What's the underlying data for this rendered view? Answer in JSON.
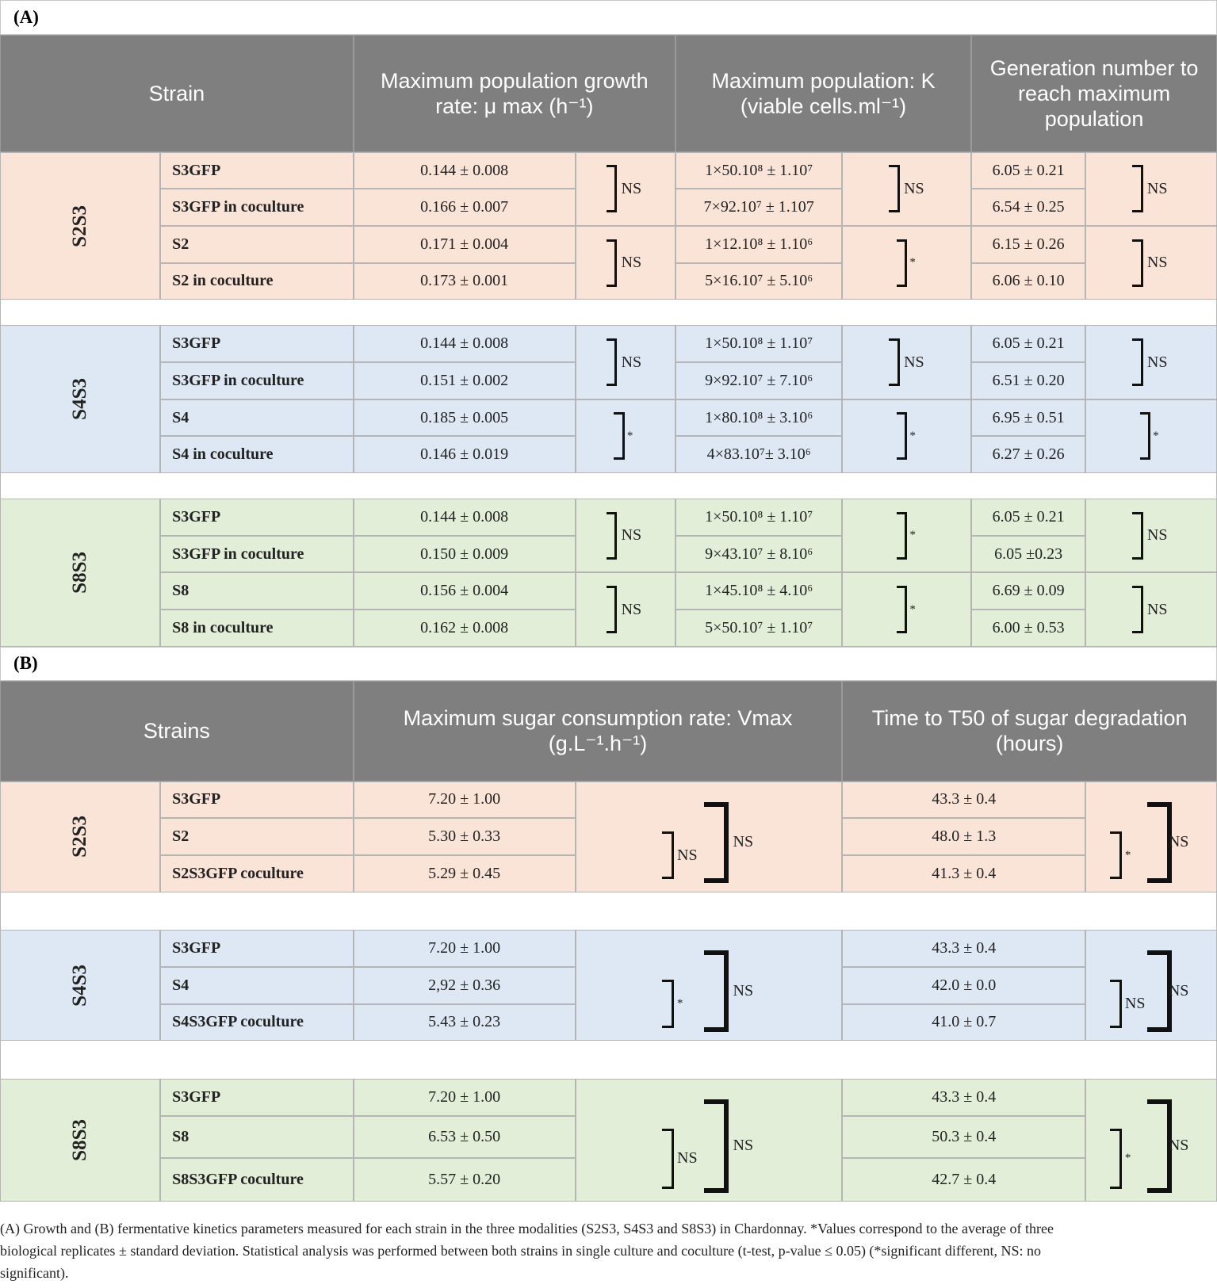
{
  "sections": [
    {
      "label": "(A)",
      "headers": [
        "Strain",
        "Maximum population growth rate: μ max (h⁻¹)",
        "Maximum population: K (viable cells.ml⁻¹)",
        "Generation number to reach maximum population"
      ],
      "groups": [
        {
          "name": "S2S3",
          "rows": [
            {
              "strain": "S3GFP",
              "values": [
                "0.144 ± 0.008",
                "1×50.10⁸ ± 1.10⁷",
                "6.05 ± 0.21"
              ]
            },
            {
              "strain": "S3GFP in coculture",
              "values": [
                "0.166 ± 0.007",
                "7×92.10⁷ ± 1.107",
                "6.54 ± 0.25"
              ]
            },
            {
              "strain": "S2",
              "values": [
                "0.171 ± 0.004",
                "1×12.10⁸ ± 1.10⁶",
                "6.15 ± 0.26"
              ]
            },
            {
              "strain": "S2 in coculture",
              "values": [
                "0.173 ± 0.001",
                "5×16.10⁷ ± 5.10⁶",
                "6.06 ± 0.10"
              ]
            }
          ],
          "comparisons": [
            [
              "NS",
              "NS",
              "NS"
            ],
            [
              "NS",
              "*",
              "NS"
            ]
          ]
        },
        {
          "name": "S4S3",
          "rows": [
            {
              "strain": "S3GFP",
              "values": [
                "0.144 ± 0.008",
                "1×50.10⁸ ± 1.10⁷",
                "6.05 ± 0.21"
              ]
            },
            {
              "strain": "S3GFP in coculture",
              "values": [
                "0.151 ± 0.002",
                "9×92.10⁷ ± 7.10⁶",
                "6.51 ± 0.20"
              ]
            },
            {
              "strain": "S4",
              "values": [
                "0.185 ± 0.005",
                "1×80.10⁸ ± 3.10⁶",
                "6.95 ± 0.51"
              ]
            },
            {
              "strain": "S4 in coculture",
              "values": [
                "0.146 ± 0.019",
                "4×83.10⁷± 3.10⁶",
                "6.27 ± 0.26"
              ]
            }
          ],
          "comparisons": [
            [
              "NS",
              "NS",
              "NS"
            ],
            [
              "*",
              "*",
              "*"
            ]
          ]
        },
        {
          "name": "S8S3",
          "rows": [
            {
              "strain": "S3GFP",
              "values": [
                "0.144 ± 0.008",
                "1×50.10⁸ ± 1.10⁷",
                "6.05 ± 0.21"
              ]
            },
            {
              "strain": "S3GFP in coculture",
              "values": [
                "0.150 ± 0.009",
                "9×43.10⁷ ± 8.10⁶",
                "6.05 ±0.23"
              ]
            },
            {
              "strain": "S8",
              "values": [
                "0.156 ± 0.004",
                "1×45.10⁸ ± 4.10⁶",
                "6.69 ± 0.09"
              ]
            },
            {
              "strain": "S8 in coculture",
              "values": [
                "0.162 ± 0.008",
                "5×50.10⁷ ± 1.10⁷",
                "6.00 ± 0.53"
              ]
            }
          ],
          "comparisons": [
            [
              "NS",
              "*",
              "NS"
            ],
            [
              "NS",
              "*",
              "NS"
            ]
          ]
        }
      ]
    },
    {
      "label": "(B)",
      "headers": [
        "Strains",
        "Maximum sugar consumption rate: Vmax (g.L⁻¹.h⁻¹)",
        "Time to T50 of sugar degradation (hours)"
      ],
      "groups": [
        {
          "name": "S2S3",
          "rows": [
            {
              "strain": "S3GFP",
              "values": [
                "7.20 ± 1.00",
                "43.3 ± 0.4"
              ]
            },
            {
              "strain": "S2",
              "values": [
                "5.30 ± 0.33",
                "48.0 ± 1.3"
              ]
            },
            {
              "strain": "S2S3GFP coculture",
              "values": [
                "5.29 ± 0.45",
                "41.3 ± 0.4"
              ]
            }
          ],
          "comparisons": [
            {
              "pair": "NS",
              "all": "NS"
            },
            {
              "pair": "*",
              "all": "NS"
            }
          ]
        },
        {
          "name": "S4S3",
          "rows": [
            {
              "strain": "S3GFP",
              "values": [
                "7.20 ± 1.00",
                "43.3 ± 0.4"
              ]
            },
            {
              "strain": "S4",
              "values": [
                "2,92 ± 0.36",
                "42.0 ± 0.0"
              ]
            },
            {
              "strain": "S4S3GFP coculture",
              "values": [
                "5.43 ± 0.23",
                "41.0 ± 0.7"
              ]
            }
          ],
          "comparisons": [
            {
              "pair": "*",
              "all": "NS"
            },
            {
              "pair": "NS",
              "all": "NS"
            }
          ]
        },
        {
          "name": "S8S3",
          "rows": [
            {
              "strain": "S3GFP",
              "values": [
                "7.20 ± 1.00",
                "43.3 ± 0.4"
              ]
            },
            {
              "strain": "S8",
              "values": [
                "6.53 ± 0.50",
                "50.3 ± 0.4"
              ]
            },
            {
              "strain": "S8S3GFP coculture",
              "values": [
                "5.57 ± 0.20",
                "42.7 ± 0.4"
              ]
            }
          ],
          "comparisons": [
            {
              "pair": "NS",
              "all": "NS"
            },
            {
              "pair": "*",
              "all": "NS"
            }
          ]
        }
      ]
    }
  ],
  "caption": "(A) Growth and (B) fermentative kinetics parameters measured for each strain in the three modalities (S2S3, S4S3 and S8S3) in Chardonnay. *Values correspond to the average of three biological replicates ± standard deviation. Statistical analysis was performed between both strains in single culture and coculture (t-test, p-value ≤ 0.05) (*significant different, NS: no significant)."
}
